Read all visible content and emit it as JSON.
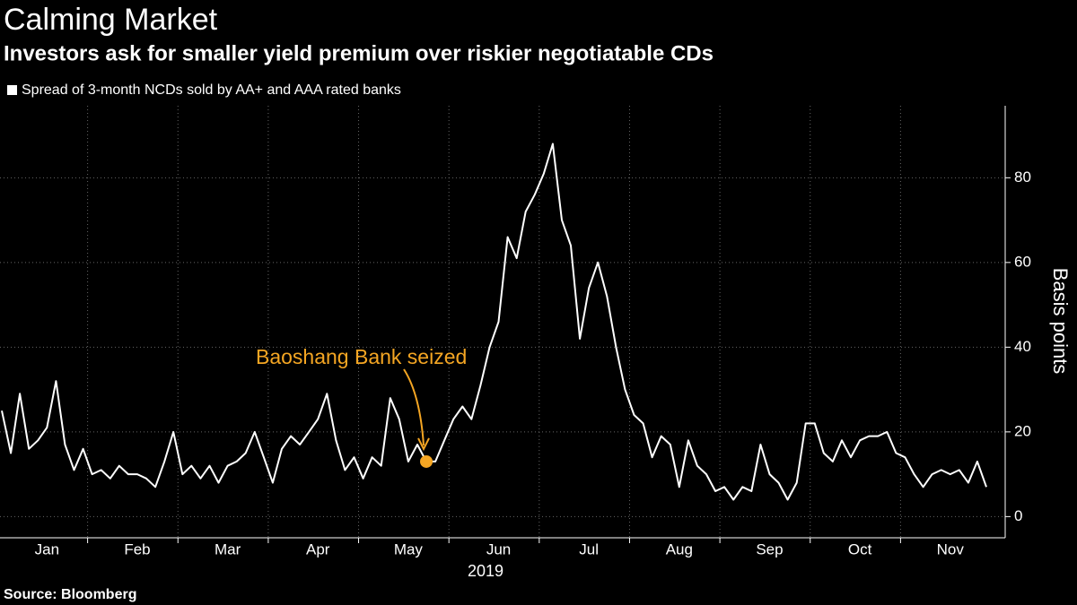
{
  "chart_data": {
    "type": "line",
    "title": "Calming Market",
    "subtitle": "Investors ask for smaller yield premium over riskier negotiatable CDs",
    "source": "Source: Bloomberg",
    "x_label": "2019",
    "y_label": "Basis points",
    "annotation": "Baoshang Bank seized",
    "annotation_color": "#f5a623",
    "categories": [
      null,
      null,
      null,
      null,
      null,
      "Jan",
      null,
      null,
      null,
      null,
      null,
      null,
      null,
      null,
      null,
      "Feb",
      null,
      null,
      null,
      null,
      null,
      null,
      null,
      null,
      null,
      "Mar",
      null,
      null,
      null,
      null,
      null,
      null,
      null,
      null,
      null,
      "Apr",
      null,
      null,
      null,
      null,
      null,
      null,
      null,
      null,
      null,
      "May",
      null,
      null,
      null,
      null,
      null,
      null,
      null,
      null,
      null,
      "Jun",
      null,
      null,
      null,
      null,
      null,
      null,
      null,
      null,
      null,
      "Jul",
      null,
      null,
      null,
      null,
      null,
      null,
      null,
      null,
      null,
      "Aug",
      null,
      null,
      null,
      null,
      null,
      null,
      null,
      null,
      null,
      "Sep",
      null,
      null,
      null,
      null,
      null,
      null,
      null,
      null,
      null,
      "Oct",
      null,
      null,
      null,
      null,
      null,
      null,
      null,
      null,
      null,
      "Nov",
      null,
      null,
      null,
      null
    ],
    "series": [
      {
        "name": "Spread of 3-month NCDs sold by AA+ and AAA rated banks",
        "color": "#ffffff",
        "values": [
          25,
          15,
          29,
          16,
          18,
          21,
          32,
          17,
          11,
          16,
          10,
          11,
          9,
          12,
          10,
          10,
          9,
          7,
          13,
          20,
          10,
          12,
          9,
          12,
          8,
          12,
          13,
          15,
          20,
          14,
          8,
          16,
          19,
          17,
          20,
          23,
          29,
          18,
          11,
          14,
          9,
          14,
          12,
          28,
          23,
          13,
          17,
          13,
          13,
          18,
          23,
          26,
          23,
          31,
          40,
          46,
          66,
          61,
          72,
          76,
          81,
          88,
          70,
          64,
          42,
          54,
          60,
          52,
          40,
          30,
          24,
          22,
          14,
          19,
          17,
          7,
          18,
          12,
          10,
          6,
          7,
          4,
          7,
          6,
          17,
          10,
          8,
          4,
          8,
          22,
          22,
          15,
          13,
          18,
          14,
          18,
          19,
          19,
          20,
          15,
          14,
          10,
          7,
          10,
          11,
          10,
          11,
          8,
          13,
          7
        ]
      }
    ],
    "ylim": [
      -5,
      97
    ],
    "yticks": [
      0,
      20,
      40,
      60,
      80
    ],
    "grid": true
  }
}
